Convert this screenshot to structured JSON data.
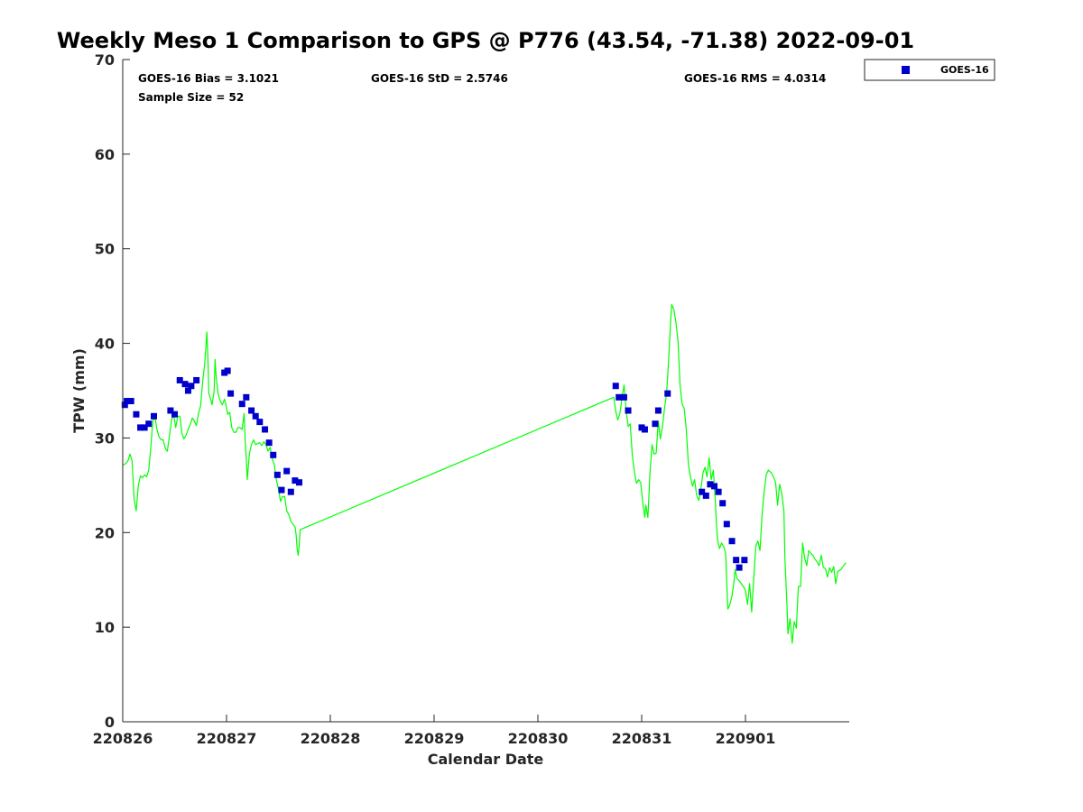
{
  "chart_data": {
    "type": "scatter",
    "title": "Weekly Meso 1 Comparison to GPS @ P776 (43.54, -71.38) 2022-09-01",
    "xlabel": "Calendar Date",
    "ylabel": "TPW (mm)",
    "xlim": [
      0,
      7
    ],
    "ylim": [
      0,
      70
    ],
    "x_ticks": [
      0,
      1,
      2,
      3,
      4,
      5,
      6
    ],
    "x_tick_labels": [
      "220826",
      "220827",
      "220828",
      "220829",
      "220830",
      "220831",
      "220901"
    ],
    "y_ticks": [
      0,
      10,
      20,
      30,
      40,
      50,
      60,
      70
    ],
    "y_tick_labels": [
      "0",
      "10",
      "20",
      "30",
      "40",
      "50",
      "60",
      "70"
    ],
    "colors": {
      "goes": "#0000cc",
      "gps": "#00ff00",
      "axis": "#262626"
    },
    "stats": {
      "bias": "GOES-16 Bias = 3.1021",
      "std": "GOES-16 StD = 2.5746",
      "rms": "GOES-16 RMS = 4.0314",
      "sample": "Sample Size = 52"
    },
    "legend": {
      "position": "top-right-outside",
      "entries": [
        "GOES-16"
      ]
    },
    "series": [
      {
        "name": "GOES-16",
        "kind": "scatter",
        "points": [
          [
            0.02,
            33.5
          ],
          [
            0.04,
            33.9
          ],
          [
            0.08,
            33.9
          ],
          [
            0.13,
            32.5
          ],
          [
            0.17,
            31.1
          ],
          [
            0.21,
            31.1
          ],
          [
            0.25,
            31.5
          ],
          [
            0.3,
            32.3
          ],
          [
            0.46,
            32.9
          ],
          [
            0.5,
            32.5
          ],
          [
            0.55,
            36.1
          ],
          [
            0.6,
            35.7
          ],
          [
            0.63,
            35.0
          ],
          [
            0.66,
            35.5
          ],
          [
            0.71,
            36.1
          ],
          [
            0.98,
            36.9
          ],
          [
            1.01,
            37.1
          ],
          [
            1.04,
            34.7
          ],
          [
            1.15,
            33.6
          ],
          [
            1.19,
            34.3
          ],
          [
            1.24,
            32.9
          ],
          [
            1.28,
            32.3
          ],
          [
            1.32,
            31.7
          ],
          [
            1.37,
            30.9
          ],
          [
            1.41,
            29.5
          ],
          [
            1.45,
            28.2
          ],
          [
            1.49,
            26.1
          ],
          [
            1.53,
            24.5
          ],
          [
            1.58,
            26.5
          ],
          [
            1.62,
            24.3
          ],
          [
            1.66,
            25.5
          ],
          [
            1.7,
            25.3
          ],
          [
            4.75,
            35.5
          ],
          [
            4.78,
            34.3
          ],
          [
            4.83,
            34.3
          ],
          [
            4.87,
            32.9
          ],
          [
            5.0,
            31.1
          ],
          [
            5.03,
            30.9
          ],
          [
            5.13,
            31.5
          ],
          [
            5.16,
            32.9
          ],
          [
            5.25,
            34.7
          ],
          [
            5.58,
            24.3
          ],
          [
            5.62,
            23.9
          ],
          [
            5.66,
            25.1
          ],
          [
            5.7,
            24.9
          ],
          [
            5.74,
            24.3
          ],
          [
            5.78,
            23.1
          ],
          [
            5.82,
            20.9
          ],
          [
            5.87,
            19.1
          ],
          [
            5.91,
            17.1
          ],
          [
            5.94,
            16.3
          ],
          [
            5.99,
            17.1
          ]
        ]
      },
      {
        "name": "GPS",
        "kind": "line",
        "points": [
          [
            0.0,
            27.1
          ],
          [
            0.03,
            27.3
          ],
          [
            0.05,
            27.6
          ],
          [
            0.07,
            28.3
          ],
          [
            0.09,
            27.6
          ],
          [
            0.11,
            23.5
          ],
          [
            0.13,
            22.3
          ],
          [
            0.15,
            25.0
          ],
          [
            0.17,
            26.0
          ],
          [
            0.19,
            25.8
          ],
          [
            0.21,
            26.1
          ],
          [
            0.23,
            25.9
          ],
          [
            0.25,
            26.6
          ],
          [
            0.27,
            29.0
          ],
          [
            0.29,
            31.8
          ],
          [
            0.31,
            32.2
          ],
          [
            0.33,
            30.9
          ],
          [
            0.35,
            30.1
          ],
          [
            0.37,
            29.8
          ],
          [
            0.39,
            29.8
          ],
          [
            0.41,
            28.9
          ],
          [
            0.43,
            28.6
          ],
          [
            0.45,
            30.3
          ],
          [
            0.47,
            31.9
          ],
          [
            0.49,
            32.5
          ],
          [
            0.51,
            31.1
          ],
          [
            0.53,
            32.3
          ],
          [
            0.55,
            32.3
          ],
          [
            0.57,
            30.5
          ],
          [
            0.59,
            29.9
          ],
          [
            0.61,
            30.3
          ],
          [
            0.63,
            30.9
          ],
          [
            0.65,
            31.4
          ],
          [
            0.67,
            32.1
          ],
          [
            0.69,
            31.8
          ],
          [
            0.71,
            31.3
          ],
          [
            0.73,
            32.6
          ],
          [
            0.75,
            33.4
          ],
          [
            0.77,
            36.0
          ],
          [
            0.79,
            37.9
          ],
          [
            0.8,
            39.4
          ],
          [
            0.81,
            41.2
          ],
          [
            0.82,
            38.6
          ],
          [
            0.83,
            34.7
          ],
          [
            0.85,
            34.0
          ],
          [
            0.86,
            33.5
          ],
          [
            0.88,
            34.9
          ],
          [
            0.89,
            38.3
          ],
          [
            0.9,
            36.5
          ],
          [
            0.92,
            34.6
          ],
          [
            0.94,
            33.9
          ],
          [
            0.96,
            33.5
          ],
          [
            0.98,
            34.1
          ],
          [
            0.99,
            33.7
          ],
          [
            1.01,
            32.5
          ],
          [
            1.03,
            32.7
          ],
          [
            1.05,
            31.1
          ],
          [
            1.07,
            30.6
          ],
          [
            1.09,
            30.6
          ],
          [
            1.11,
            31.1
          ],
          [
            1.13,
            31.1
          ],
          [
            1.15,
            30.9
          ],
          [
            1.17,
            32.6
          ],
          [
            1.18,
            29.6
          ],
          [
            1.19,
            27.9
          ],
          [
            1.2,
            25.6
          ],
          [
            1.22,
            28.3
          ],
          [
            1.24,
            29.3
          ],
          [
            1.26,
            29.8
          ],
          [
            1.28,
            29.3
          ],
          [
            1.3,
            29.4
          ],
          [
            1.32,
            29.5
          ],
          [
            1.34,
            29.2
          ],
          [
            1.36,
            29.6
          ],
          [
            1.38,
            29.3
          ],
          [
            1.4,
            28.6
          ],
          [
            1.42,
            29.0
          ],
          [
            1.44,
            27.8
          ],
          [
            1.46,
            27.2
          ],
          [
            1.48,
            25.6
          ],
          [
            1.5,
            24.6
          ],
          [
            1.52,
            23.3
          ],
          [
            1.54,
            23.8
          ],
          [
            1.56,
            23.8
          ],
          [
            1.58,
            22.3
          ],
          [
            1.6,
            21.9
          ],
          [
            1.62,
            21.2
          ],
          [
            1.64,
            20.9
          ],
          [
            1.66,
            20.6
          ],
          [
            1.67,
            19.8
          ],
          [
            1.68,
            18.3
          ],
          [
            1.69,
            17.6
          ],
          [
            1.7,
            18.6
          ],
          [
            1.71,
            20.3
          ],
          [
            4.73,
            34.3
          ],
          [
            4.75,
            32.8
          ],
          [
            4.77,
            31.9
          ],
          [
            4.79,
            32.6
          ],
          [
            4.81,
            34.2
          ],
          [
            4.83,
            35.6
          ],
          [
            4.85,
            32.9
          ],
          [
            4.87,
            31.2
          ],
          [
            4.89,
            31.5
          ],
          [
            4.91,
            28.2
          ],
          [
            4.93,
            26.4
          ],
          [
            4.95,
            25.2
          ],
          [
            4.97,
            25.6
          ],
          [
            4.99,
            25.3
          ],
          [
            5.01,
            23.2
          ],
          [
            5.03,
            21.6
          ],
          [
            5.04,
            22.9
          ],
          [
            5.06,
            21.6
          ],
          [
            5.08,
            26.3
          ],
          [
            5.1,
            29.3
          ],
          [
            5.12,
            28.3
          ],
          [
            5.14,
            28.4
          ],
          [
            5.16,
            31.8
          ],
          [
            5.18,
            29.9
          ],
          [
            5.2,
            31.2
          ],
          [
            5.22,
            33.1
          ],
          [
            5.24,
            34.7
          ],
          [
            5.26,
            38.3
          ],
          [
            5.28,
            42.6
          ],
          [
            5.29,
            44.1
          ],
          [
            5.31,
            43.6
          ],
          [
            5.33,
            42.2
          ],
          [
            5.35,
            40.2
          ],
          [
            5.37,
            35.6
          ],
          [
            5.39,
            33.6
          ],
          [
            5.41,
            33.1
          ],
          [
            5.43,
            30.9
          ],
          [
            5.45,
            27.2
          ],
          [
            5.47,
            25.9
          ],
          [
            5.49,
            24.9
          ],
          [
            5.51,
            25.6
          ],
          [
            5.53,
            23.9
          ],
          [
            5.55,
            23.4
          ],
          [
            5.57,
            24.5
          ],
          [
            5.59,
            26.3
          ],
          [
            5.61,
            26.9
          ],
          [
            5.63,
            25.9
          ],
          [
            5.65,
            27.9
          ],
          [
            5.67,
            25.6
          ],
          [
            5.69,
            26.6
          ],
          [
            5.71,
            23.3
          ],
          [
            5.72,
            20.9
          ],
          [
            5.73,
            19.3
          ],
          [
            5.75,
            18.3
          ],
          [
            5.77,
            18.9
          ],
          [
            5.79,
            18.5
          ],
          [
            5.81,
            17.8
          ],
          [
            5.82,
            14.5
          ],
          [
            5.83,
            11.9
          ],
          [
            5.85,
            12.4
          ],
          [
            5.87,
            13.3
          ],
          [
            5.89,
            14.9
          ],
          [
            5.9,
            16.1
          ],
          [
            5.92,
            15.1
          ],
          [
            5.94,
            14.9
          ],
          [
            5.96,
            14.6
          ],
          [
            5.98,
            14.3
          ],
          [
            6.0,
            13.9
          ],
          [
            6.02,
            12.4
          ],
          [
            6.04,
            14.6
          ],
          [
            6.06,
            11.6
          ],
          [
            6.08,
            15.3
          ],
          [
            6.1,
            18.6
          ],
          [
            6.12,
            19.1
          ],
          [
            6.14,
            18.1
          ],
          [
            6.16,
            21.9
          ],
          [
            6.18,
            24.3
          ],
          [
            6.2,
            26.1
          ],
          [
            6.22,
            26.6
          ],
          [
            6.25,
            26.3
          ],
          [
            6.27,
            25.9
          ],
          [
            6.29,
            25.3
          ],
          [
            6.31,
            22.9
          ],
          [
            6.33,
            25.1
          ],
          [
            6.35,
            24.1
          ],
          [
            6.37,
            22.3
          ],
          [
            6.38,
            17.3
          ],
          [
            6.4,
            12.3
          ],
          [
            6.41,
            9.3
          ],
          [
            6.43,
            10.9
          ],
          [
            6.45,
            8.3
          ],
          [
            6.47,
            10.6
          ],
          [
            6.49,
            9.9
          ],
          [
            6.51,
            14.3
          ],
          [
            6.53,
            14.3
          ],
          [
            6.55,
            18.9
          ],
          [
            6.57,
            17.3
          ],
          [
            6.59,
            16.5
          ],
          [
            6.61,
            18.1
          ],
          [
            6.63,
            17.8
          ],
          [
            6.65,
            17.6
          ],
          [
            6.67,
            17.2
          ],
          [
            6.69,
            16.9
          ],
          [
            6.71,
            16.5
          ],
          [
            6.73,
            17.6
          ],
          [
            6.75,
            16.3
          ],
          [
            6.77,
            16.2
          ],
          [
            6.79,
            15.3
          ],
          [
            6.81,
            16.3
          ],
          [
            6.83,
            15.8
          ],
          [
            6.85,
            16.4
          ],
          [
            6.87,
            14.6
          ],
          [
            6.89,
            15.9
          ],
          [
            6.92,
            16.1
          ],
          [
            6.95,
            16.6
          ],
          [
            6.97,
            16.8
          ]
        ]
      }
    ]
  }
}
